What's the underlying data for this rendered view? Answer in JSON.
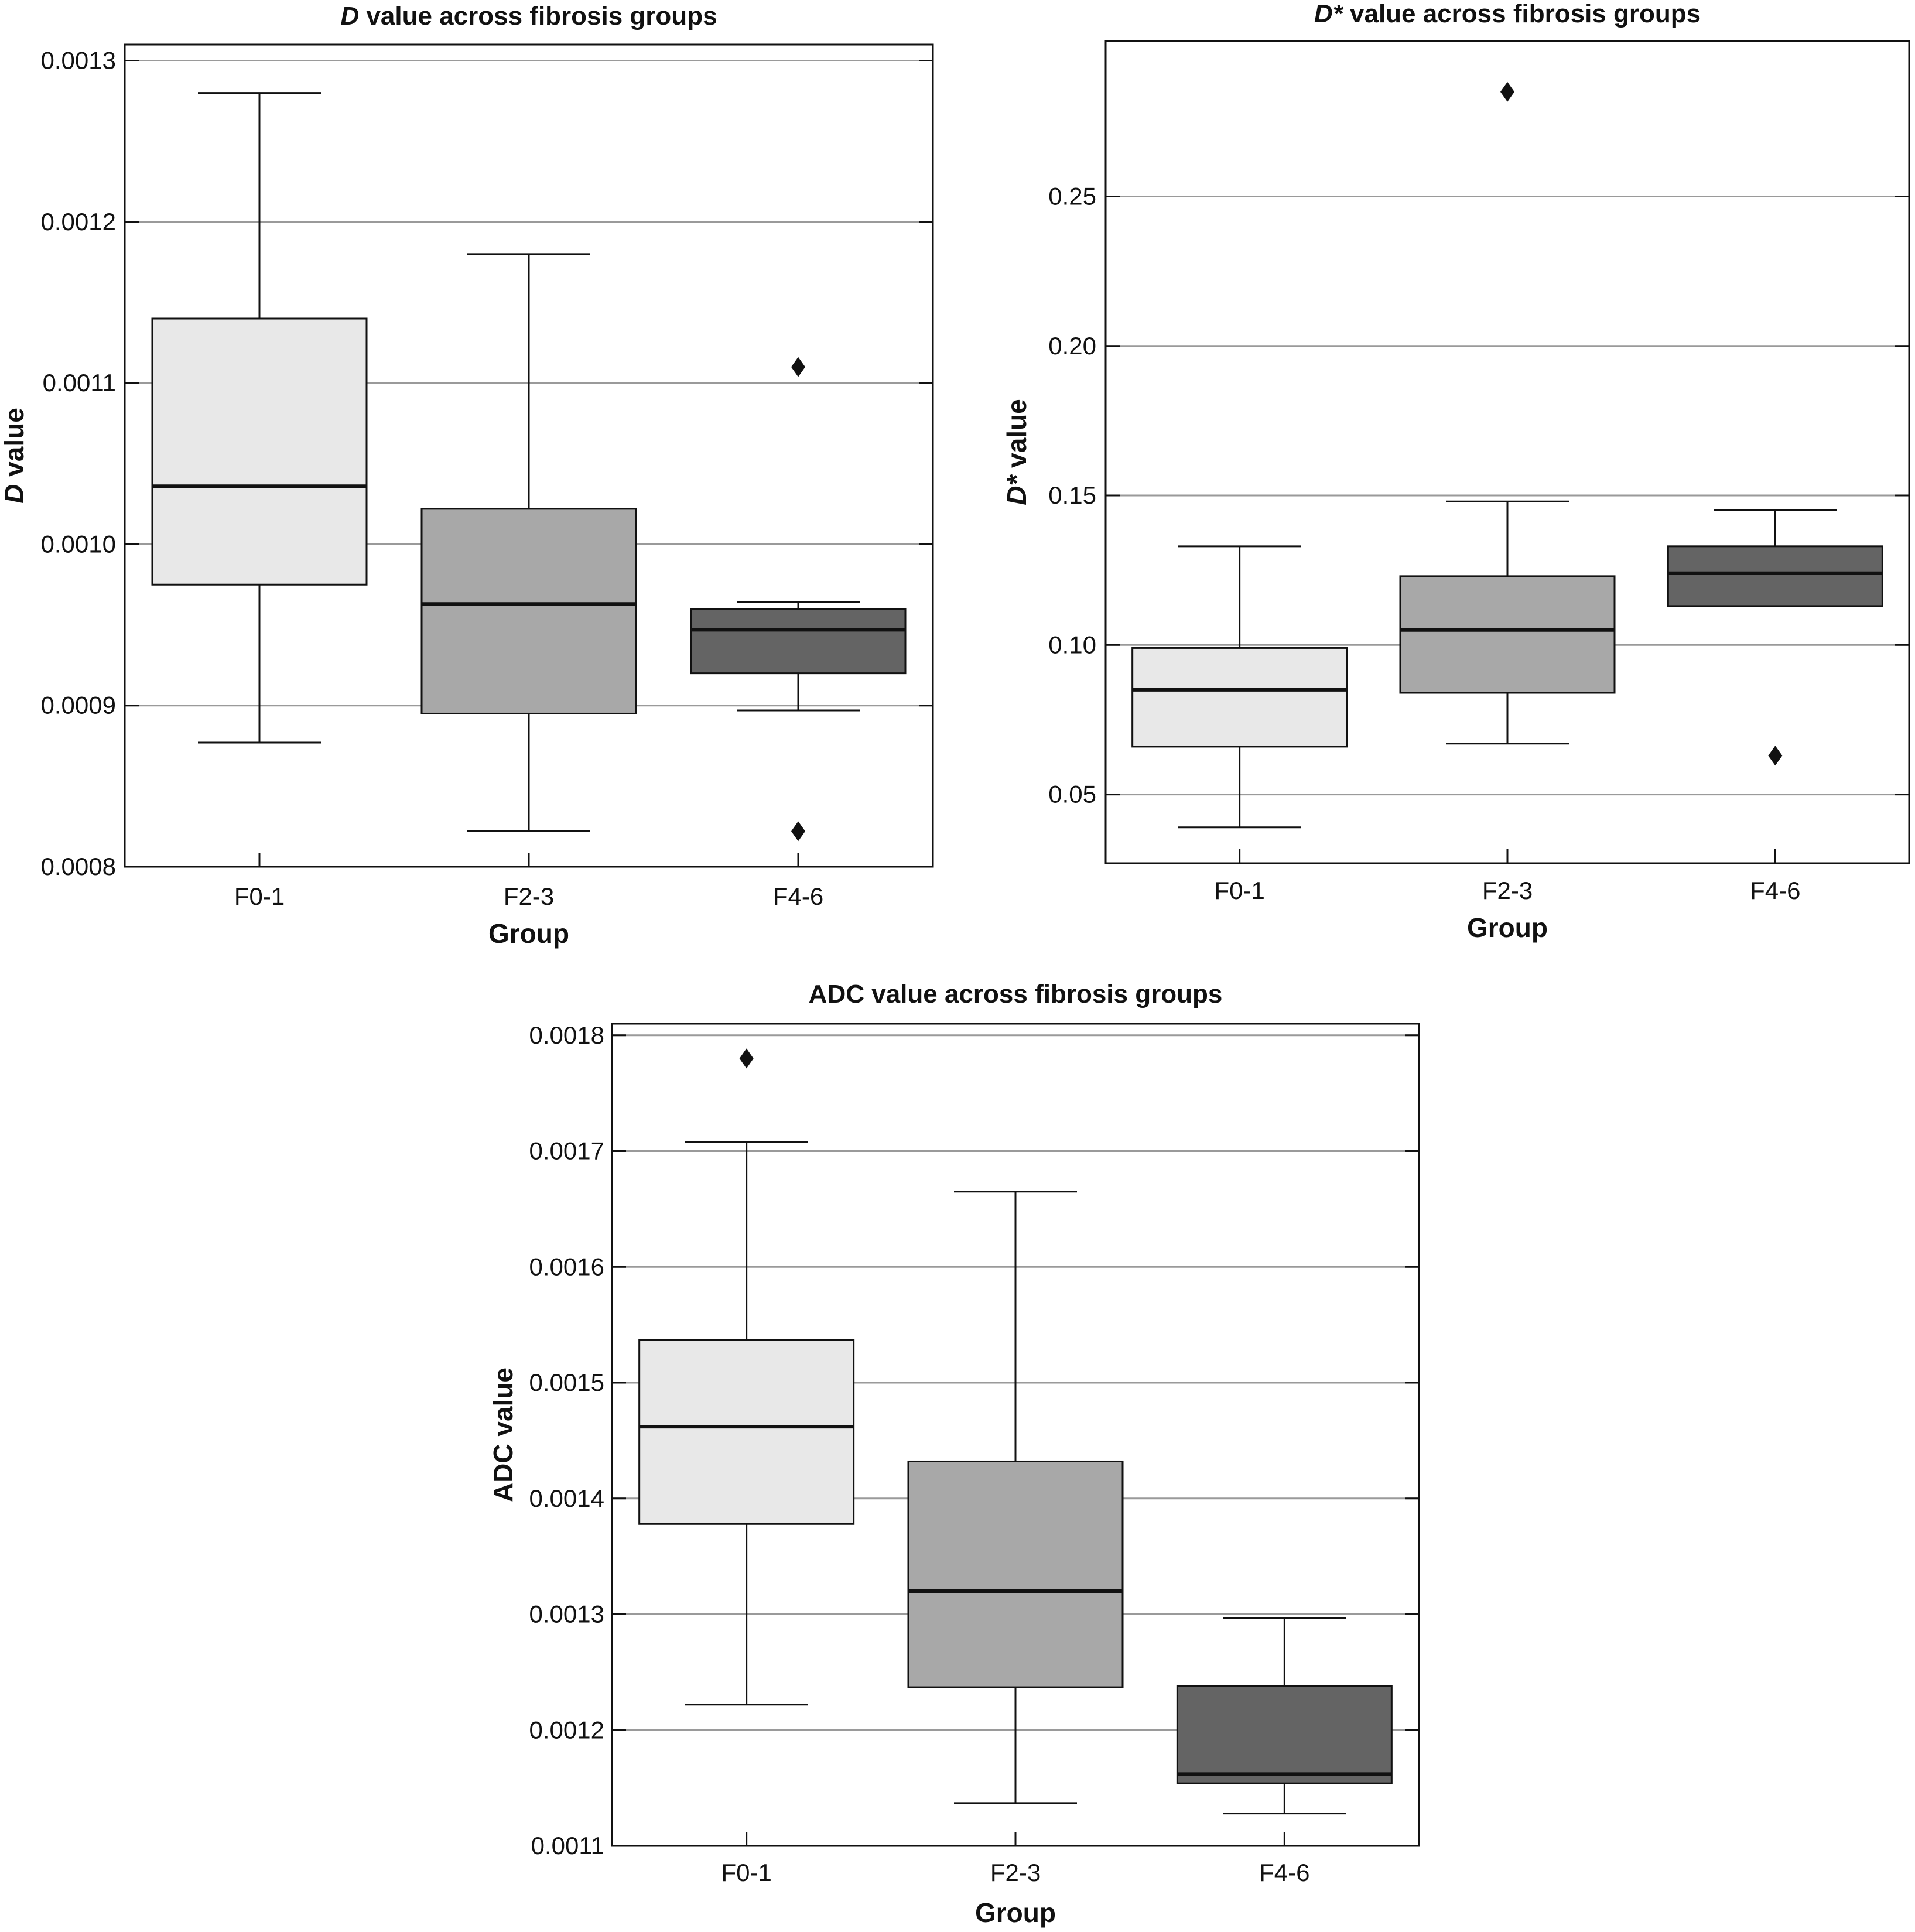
{
  "chart_data": [
    {
      "type": "box",
      "title_main": "D",
      "title_rest": " value across fibrosis groups",
      "xlabel": "Group",
      "ylabel_main": "D",
      "ylabel_rest": " value",
      "ylim": [
        0.0008,
        0.00131
      ],
      "yticks": [
        0.0008,
        0.0009,
        0.001,
        0.0011,
        0.0012,
        0.0013
      ],
      "ytick_labels": [
        "0.0008",
        "0.0009",
        "0.0010",
        "0.0011",
        "0.0012",
        "0.0013"
      ],
      "grid": true,
      "categories": [
        "F0-1",
        "F2-3",
        "F4-6"
      ],
      "fills": [
        "#e8e8e8",
        "#a8a8a8",
        "#646464"
      ],
      "boxes": [
        {
          "category": "F0-1",
          "whisker_low": 0.000877,
          "q1": 0.000975,
          "median": 0.001036,
          "q3": 0.00114,
          "whisker_high": 0.00128,
          "outliers": []
        },
        {
          "category": "F2-3",
          "whisker_low": 0.000822,
          "q1": 0.000895,
          "median": 0.000963,
          "q3": 0.001022,
          "whisker_high": 0.00118,
          "outliers": []
        },
        {
          "category": "F4-6",
          "whisker_low": 0.000897,
          "q1": 0.00092,
          "median": 0.000947,
          "q3": 0.00096,
          "whisker_high": 0.000964,
          "outliers": [
            0.00111,
            0.000822
          ]
        }
      ]
    },
    {
      "type": "box",
      "title_main": "D*",
      "title_rest": " value across fibrosis groups",
      "xlabel": "Group",
      "ylabel_main": "D*",
      "ylabel_rest": " value",
      "ylim": [
        0.027,
        0.302
      ],
      "yticks": [
        0.05,
        0.1,
        0.15,
        0.2,
        0.25
      ],
      "ytick_labels": [
        "0.05",
        "0.10",
        "0.15",
        "0.20",
        "0.25"
      ],
      "grid": true,
      "categories": [
        "F0-1",
        "F2-3",
        "F4-6"
      ],
      "fills": [
        "#e8e8e8",
        "#a8a8a8",
        "#646464"
      ],
      "boxes": [
        {
          "category": "F0-1",
          "whisker_low": 0.039,
          "q1": 0.066,
          "median": 0.085,
          "q3": 0.099,
          "whisker_high": 0.133,
          "outliers": []
        },
        {
          "category": "F2-3",
          "whisker_low": 0.067,
          "q1": 0.084,
          "median": 0.105,
          "q3": 0.123,
          "whisker_high": 0.148,
          "outliers": [
            0.285
          ]
        },
        {
          "category": "F4-6",
          "whisker_low": 0.113,
          "q1": 0.113,
          "median": 0.124,
          "q3": 0.133,
          "whisker_high": 0.145,
          "outliers": [
            0.063
          ]
        }
      ]
    },
    {
      "type": "box",
      "title_main": "",
      "title_rest": "ADC value across fibrosis groups",
      "xlabel": "Group",
      "ylabel_main": "",
      "ylabel_rest": "ADC value",
      "ylim": [
        0.0011,
        0.00181
      ],
      "yticks": [
        0.0011,
        0.0012,
        0.0013,
        0.0014,
        0.0015,
        0.0016,
        0.0017,
        0.0018
      ],
      "ytick_labels": [
        "0.0011",
        "0.0012",
        "0.0013",
        "0.0014",
        "0.0015",
        "0.0016",
        "0.0017",
        "0.0018"
      ],
      "grid": true,
      "categories": [
        "F0-1",
        "F2-3",
        "F4-6"
      ],
      "fills": [
        "#e8e8e8",
        "#a8a8a8",
        "#646464"
      ],
      "boxes": [
        {
          "category": "F0-1",
          "whisker_low": 0.001222,
          "q1": 0.001378,
          "median": 0.001462,
          "q3": 0.001537,
          "whisker_high": 0.001708,
          "outliers": [
            0.00178
          ]
        },
        {
          "category": "F2-3",
          "whisker_low": 0.001137,
          "q1": 0.001237,
          "median": 0.00132,
          "q3": 0.001432,
          "whisker_high": 0.001665,
          "outliers": []
        },
        {
          "category": "F4-6",
          "whisker_low": 0.001128,
          "q1": 0.001154,
          "median": 0.001162,
          "q3": 0.001238,
          "whisker_high": 0.001297,
          "outliers": []
        }
      ]
    }
  ]
}
